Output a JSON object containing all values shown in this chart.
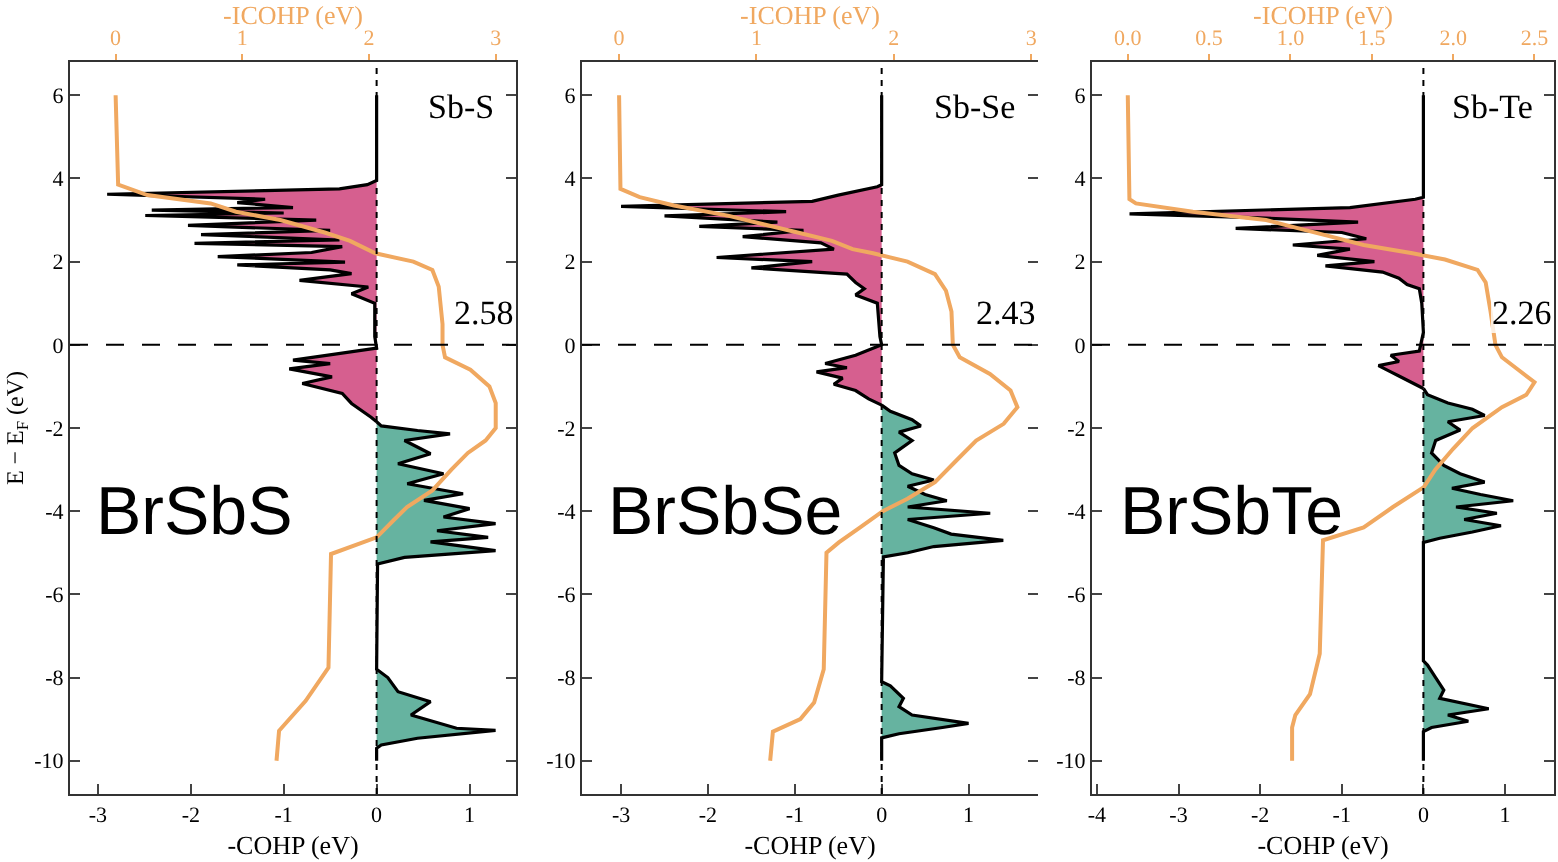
{
  "chart_data": [
    {
      "type": "area",
      "xlabel": "-COHP (eV)",
      "x2label": "-ICOHP (eV)",
      "ylabel": "E − E$_{F}$ (eV)",
      "annotations": [
        "Sb-S",
        "2.58",
        "BrSbS"
      ],
      "xlim": [
        -3.3,
        1.5
      ],
      "xticks": [
        -3,
        -2,
        -1,
        0,
        1
      ],
      "x2lim": [
        -0.36,
        3.16
      ],
      "x2ticks": [
        0,
        1,
        2,
        3
      ],
      "ylim": [
        -10.8,
        6.8
      ],
      "yticks": [
        -10,
        -8,
        -6,
        -4,
        -2,
        0,
        2,
        4,
        6
      ],
      "grid": false,
      "ref_lines": [
        {
          "axis": "y",
          "value": 0,
          "color": "#000000",
          "line_style": "dashed"
        },
        {
          "axis": "x",
          "value": 0,
          "color": "#000000",
          "line_style": "dotted"
        }
      ],
      "series": [
        {
          "type": "area",
          "color": "#d65f8f",
          "x": [
            0,
            0,
            -0.1,
            -0.4,
            -2.9,
            -1.2,
            -1.5,
            -0.9,
            -2.42,
            -1.0,
            -2.49,
            -0.65,
            -2.03,
            -0.5,
            -1.89,
            -0.4,
            -1.96,
            -0.37,
            -0.7,
            -1.71,
            -0.34,
            -1.5,
            -0.5,
            -0.27,
            -0.83,
            -0.09,
            -0.27,
            -0.02,
            -0.02,
            0,
            -0.41,
            -0.9,
            -0.5,
            -0.94,
            -0.48,
            -0.8,
            -0.37,
            -0.27,
            -0.06,
            0
          ],
          "values": [
            6,
            3.95,
            3.85,
            3.75,
            3.62,
            3.5,
            3.42,
            3.3,
            3.24,
            3.17,
            3.11,
            3.0,
            2.87,
            2.75,
            2.65,
            2.52,
            2.44,
            2.36,
            2.22,
            2.12,
            1.99,
            1.92,
            1.8,
            1.71,
            1.55,
            1.39,
            1.23,
            1.0,
            0.2,
            -0.08,
            -0.21,
            -0.37,
            -0.45,
            -0.58,
            -0.77,
            -0.93,
            -1.17,
            -1.41,
            -1.74,
            -1.85
          ]
        },
        {
          "type": "area",
          "color": "#66b3a0",
          "x": [
            0,
            0.05,
            0.44,
            0.79,
            0.3,
            0.58,
            0.23,
            0.72,
            0.33,
            0.93,
            0.51,
            1.0,
            0.72,
            1.28,
            0.65,
            1.2,
            0.58,
            1.28,
            0.3,
            0.01,
            0,
            0.12,
            0.23,
            0.58,
            0.37,
            0.86,
            1.28,
            0.44,
            0.05,
            0,
            0
          ],
          "values": [
            -1.85,
            -1.95,
            -2.06,
            -2.14,
            -2.3,
            -2.62,
            -2.86,
            -3.1,
            -3.34,
            -3.58,
            -3.74,
            -3.94,
            -4.14,
            -4.3,
            -4.47,
            -4.63,
            -4.74,
            -4.95,
            -5.11,
            -5.27,
            -7.8,
            -8.0,
            -8.34,
            -8.58,
            -8.9,
            -9.22,
            -9.27,
            -9.46,
            -9.62,
            -9.7,
            -10
          ]
        },
        {
          "type": "line",
          "axis": "x2",
          "color": "#f0a860",
          "x": [
            0,
            0.02,
            0.25,
            0.75,
            0.95,
            1.3,
            1.65,
            1.85,
            2.05,
            2.35,
            2.5,
            2.55,
            2.58,
            2.58,
            2.6,
            2.8,
            2.95,
            3.0,
            3.0,
            2.92,
            2.78,
            2.65,
            2.5,
            2.3,
            2.2,
            2.06,
            1.7,
            1.68,
            1.5,
            1.29,
            1.27
          ],
          "values": [
            6,
            3.85,
            3.6,
            3.4,
            3.2,
            3.0,
            2.7,
            2.5,
            2.2,
            2.0,
            1.8,
            1.4,
            0.5,
            0,
            -0.3,
            -0.6,
            -1.0,
            -1.4,
            -2.0,
            -2.3,
            -2.6,
            -3.0,
            -3.5,
            -3.9,
            -4.2,
            -4.63,
            -5.03,
            -7.76,
            -8.56,
            -9.28,
            -10
          ]
        }
      ]
    },
    {
      "type": "area",
      "xlabel": "-COHP (eV)",
      "x2label": "-ICOHP (eV)",
      "annotations": [
        "Sb-Se",
        "2.43",
        "BrSbSe"
      ],
      "xlim": [
        -3.45,
        1.8
      ],
      "xticks": [
        -3,
        -2,
        -1,
        0,
        1
      ],
      "x2lim": [
        -0.27,
        3.05
      ],
      "x2ticks": [
        0,
        1,
        2,
        3
      ],
      "ylim": [
        -10.8,
        6.8
      ],
      "yticks": [
        -10,
        -8,
        -6,
        -4,
        -2,
        0,
        2,
        4,
        6
      ],
      "grid": false,
      "ref_lines": [
        {
          "axis": "y",
          "value": 0,
          "color": "#000000",
          "line_style": "dashed"
        },
        {
          "axis": "x",
          "value": 0,
          "color": "#000000",
          "line_style": "dotted"
        }
      ],
      "series": [
        {
          "type": "area",
          "color": "#d65f8f",
          "x": [
            0,
            0,
            -0.05,
            -0.5,
            -0.8,
            -3.0,
            -1.1,
            -2.5,
            -1.2,
            -2.1,
            -0.9,
            -1.6,
            -0.7,
            -0.55,
            -1.9,
            -0.8,
            -1.5,
            -0.4,
            -0.3,
            -0.2,
            -0.3,
            -0.05,
            -0.02,
            0,
            -0.3,
            -0.65,
            -0.4,
            -0.75,
            -0.45,
            -0.55,
            -0.3,
            -0.15,
            0
          ],
          "values": [
            6,
            3.85,
            3.8,
            3.6,
            3.45,
            3.33,
            3.2,
            3.1,
            2.95,
            2.85,
            2.75,
            2.6,
            2.45,
            2.3,
            2.1,
            2.0,
            1.85,
            1.7,
            1.5,
            1.35,
            1.2,
            1.0,
            0.2,
            0,
            -0.25,
            -0.45,
            -0.55,
            -0.65,
            -0.8,
            -0.95,
            -1.1,
            -1.3,
            -1.45
          ]
        },
        {
          "type": "area",
          "color": "#66b3a0",
          "x": [
            0,
            0.1,
            0.35,
            0.45,
            0.2,
            0.35,
            0.15,
            0.2,
            0.35,
            0.6,
            0.3,
            0.5,
            0.75,
            0.3,
            1.25,
            0.3,
            0.6,
            0.8,
            1.4,
            0.6,
            0.3,
            0.02,
            0,
            0.1,
            0.25,
            0.2,
            0.35,
            1.0,
            0.7,
            0.2,
            0,
            0
          ],
          "values": [
            -1.45,
            -1.6,
            -1.8,
            -1.95,
            -2.1,
            -2.3,
            -2.6,
            -2.9,
            -3.1,
            -3.25,
            -3.4,
            -3.6,
            -3.75,
            -3.9,
            -4.05,
            -4.2,
            -4.4,
            -4.55,
            -4.7,
            -4.85,
            -5.0,
            -5.1,
            -8.1,
            -8.2,
            -8.5,
            -8.7,
            -8.9,
            -9.1,
            -9.2,
            -9.35,
            -9.45,
            -10
          ]
        },
        {
          "type": "line",
          "axis": "x2",
          "color": "#f0a860",
          "x": [
            0,
            0.01,
            0.15,
            0.4,
            0.8,
            1.05,
            1.3,
            1.55,
            1.7,
            1.85,
            2.1,
            2.3,
            2.38,
            2.42,
            2.43,
            2.48,
            2.7,
            2.85,
            2.9,
            2.8,
            2.6,
            2.45,
            2.3,
            2.1,
            1.92,
            1.75,
            1.6,
            1.51,
            1.49,
            1.42,
            1.32,
            1.12,
            1.1
          ],
          "values": [
            6,
            3.75,
            3.55,
            3.35,
            3.1,
            2.9,
            2.7,
            2.5,
            2.3,
            2.2,
            2.0,
            1.7,
            1.3,
            0.8,
            0,
            -0.3,
            -0.7,
            -1.1,
            -1.5,
            -1.9,
            -2.3,
            -2.8,
            -3.3,
            -3.7,
            -4.0,
            -4.4,
            -4.75,
            -5.0,
            -7.8,
            -8.6,
            -9.0,
            -9.3,
            -10
          ]
        }
      ]
    },
    {
      "type": "area",
      "xlabel": "-COHP (eV)",
      "x2label": "-ICOHP (eV)",
      "annotations": [
        "Sb-Te",
        "2.26",
        "BrSbTe"
      ],
      "xlim": [
        -4.06,
        1.6
      ],
      "xticks": [
        -4,
        -3,
        -2,
        -1,
        0,
        1
      ],
      "x2lim": [
        -0.22,
        2.62
      ],
      "x2ticks": [
        {
          "value": 0,
          "label": "0.0"
        },
        0.5,
        {
          "value": 1,
          "label": "1.0"
        },
        1.5,
        {
          "value": 2,
          "label": "2.0"
        },
        2.5
      ],
      "ylim": [
        -10.8,
        6.8
      ],
      "yticks": [
        -10,
        -8,
        -6,
        -4,
        -2,
        0,
        2,
        4,
        6
      ],
      "grid": false,
      "ref_lines": [
        {
          "axis": "y",
          "value": 0,
          "color": "#000000",
          "line_style": "dashed"
        },
        {
          "axis": "x",
          "value": 0,
          "color": "#000000",
          "line_style": "dotted"
        }
      ],
      "series": [
        {
          "type": "area",
          "color": "#d65f8f",
          "x": [
            0,
            0,
            -0.1,
            -0.9,
            -3.6,
            -2.0,
            -0.8,
            -2.3,
            -1.0,
            -0.7,
            -1.6,
            -0.9,
            -1.3,
            -0.6,
            -1.2,
            -0.5,
            -0.3,
            -0.2,
            -0.05,
            -0.02,
            0,
            -0.05,
            -0.4,
            -0.3,
            -0.55,
            -0.4,
            -0.3,
            -0.15,
            0
          ],
          "values": [
            6,
            3.55,
            3.5,
            3.3,
            3.15,
            3.05,
            2.95,
            2.8,
            2.7,
            2.55,
            2.4,
            2.3,
            2.15,
            2.0,
            1.9,
            1.75,
            1.6,
            1.45,
            1.35,
            1.0,
            0.3,
            -0.15,
            -0.25,
            -0.4,
            -0.5,
            -0.65,
            -0.75,
            -0.9,
            -1.05
          ]
        },
        {
          "type": "area",
          "color": "#66b3a0",
          "x": [
            0,
            0.05,
            0.3,
            0.6,
            0.75,
            0.3,
            0.45,
            0.15,
            0.1,
            0.25,
            0.45,
            0.75,
            0.35,
            0.7,
            1.1,
            0.4,
            0.9,
            0.5,
            0.95,
            0.6,
            0.2,
            0,
            0,
            0.05,
            0.15,
            0.25,
            0.2,
            0.8,
            0.3,
            0.55,
            0.1,
            0,
            0
          ],
          "values": [
            -1.05,
            -1.2,
            -1.4,
            -1.55,
            -1.7,
            -1.85,
            -2.05,
            -2.3,
            -2.6,
            -2.9,
            -3.1,
            -3.3,
            -3.45,
            -3.6,
            -3.75,
            -3.9,
            -4.05,
            -4.2,
            -4.35,
            -4.5,
            -4.65,
            -4.75,
            -7.6,
            -7.7,
            -8.0,
            -8.3,
            -8.5,
            -8.75,
            -8.9,
            -9.05,
            -9.2,
            -9.3,
            -10
          ]
        },
        {
          "type": "line",
          "axis": "x2",
          "color": "#f0a860",
          "x": [
            0,
            0.01,
            0.05,
            0.4,
            0.85,
            1.05,
            1.25,
            1.45,
            1.75,
            1.95,
            2.15,
            2.2,
            2.23,
            2.26,
            2.3,
            2.4,
            2.5,
            2.45,
            2.3,
            2.12,
            2.0,
            1.89,
            1.82,
            1.63,
            1.45,
            1.2,
            1.18,
            1.12,
            1.03,
            1.01,
            1.01
          ],
          "values": [
            6,
            3.5,
            3.4,
            3.2,
            3.0,
            2.8,
            2.6,
            2.4,
            2.2,
            2.05,
            1.8,
            1.5,
            0.8,
            0,
            -0.3,
            -0.6,
            -0.9,
            -1.2,
            -1.5,
            -2.0,
            -2.5,
            -3.0,
            -3.42,
            -3.9,
            -4.39,
            -4.7,
            -7.43,
            -8.4,
            -8.9,
            -9.2,
            -10
          ]
        }
      ]
    }
  ]
}
